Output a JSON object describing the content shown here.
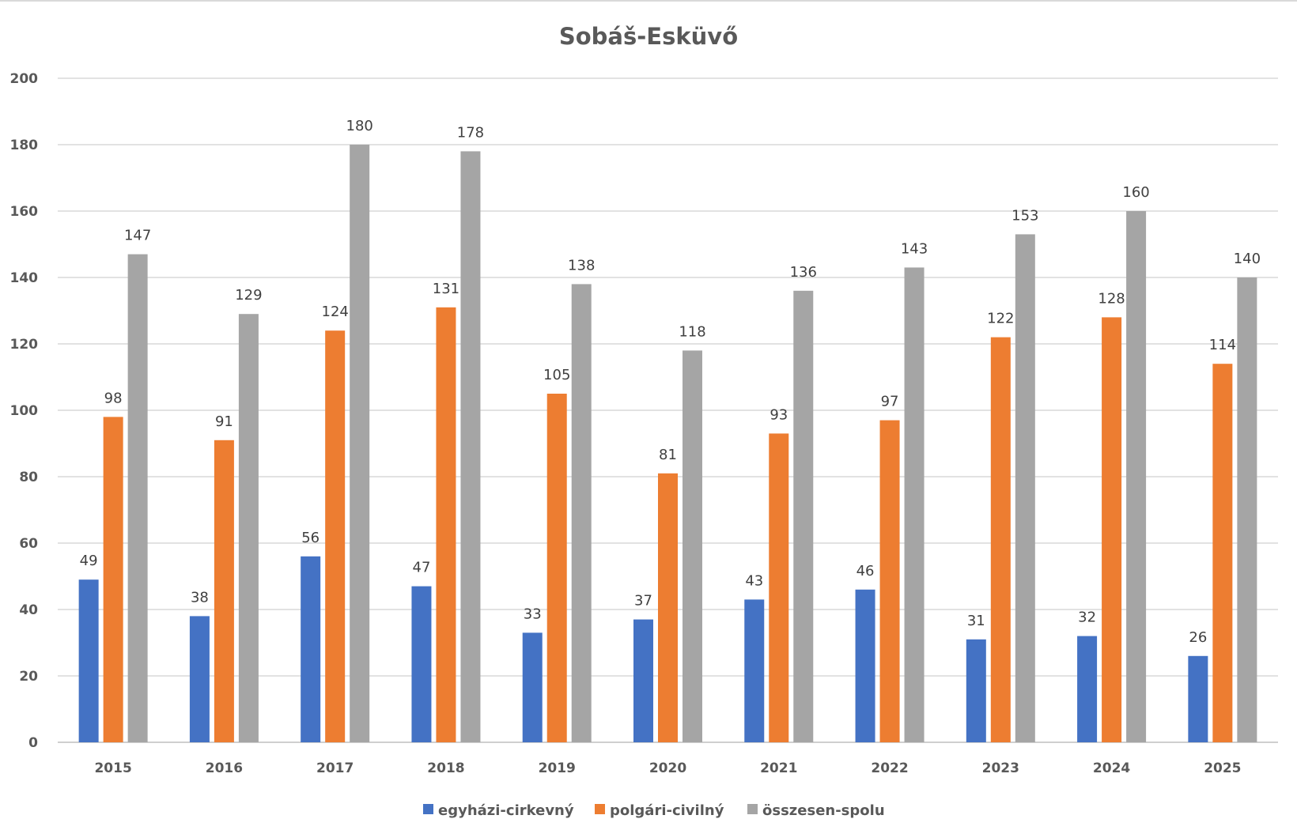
{
  "chart_data": {
    "type": "bar",
    "title": "Sobáš-Esküvő",
    "xlabel": "",
    "ylabel": "",
    "ylim": [
      0,
      200
    ],
    "yticks": [
      0,
      20,
      40,
      60,
      80,
      100,
      120,
      140,
      160,
      180,
      200
    ],
    "grid": true,
    "legend": "bottom",
    "categories": [
      "2015",
      "2016",
      "2017",
      "2018",
      "2019",
      "2020",
      "2021",
      "2022",
      "2023",
      "2024",
      "2025"
    ],
    "series": [
      {
        "name": "egyházi-cirkevný",
        "color": "#4472C4",
        "values": [
          49,
          38,
          56,
          47,
          33,
          37,
          43,
          46,
          31,
          32,
          26
        ]
      },
      {
        "name": "polgári-civilný",
        "color": "#ED7D31",
        "values": [
          98,
          91,
          124,
          131,
          105,
          81,
          93,
          97,
          122,
          128,
          114
        ]
      },
      {
        "name": "összesen-spolu",
        "color": "#A5A5A5",
        "values": [
          147,
          129,
          180,
          178,
          138,
          118,
          136,
          143,
          153,
          160,
          140
        ]
      }
    ]
  }
}
